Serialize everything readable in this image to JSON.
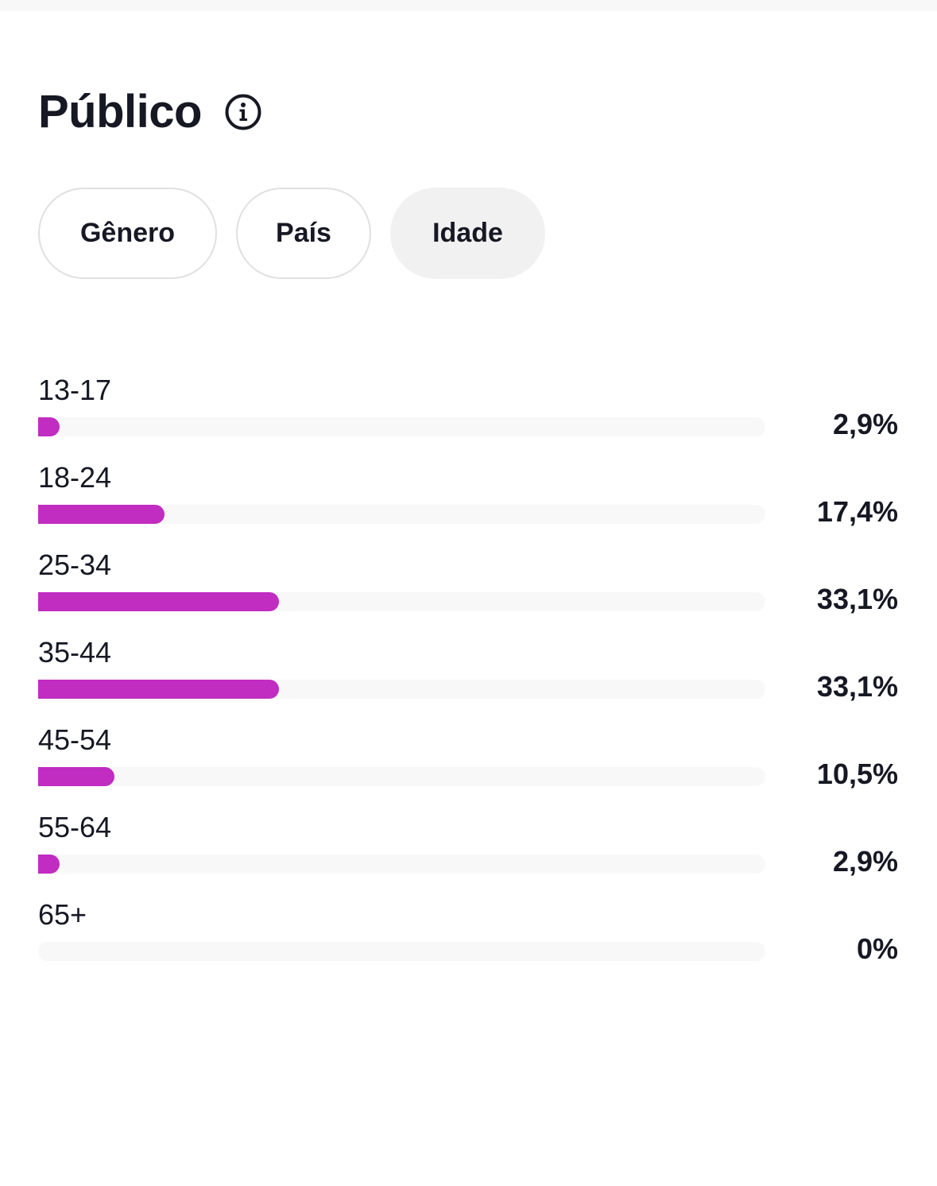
{
  "header": {
    "title": "Público",
    "info_icon": "info-circle-icon"
  },
  "tabs": [
    {
      "label": "Gênero",
      "active": false
    },
    {
      "label": "País",
      "active": false
    },
    {
      "label": "Idade",
      "active": true
    }
  ],
  "colors": {
    "bar_fill": "#c12cc1",
    "bar_track": "#f8f8f8",
    "active_tab_bg": "#f1f1f2"
  },
  "chart_data": {
    "type": "bar",
    "categories": [
      "13-17",
      "18-24",
      "25-34",
      "35-44",
      "45-54",
      "55-64",
      "65+"
    ],
    "value_labels": [
      "2,9%",
      "17,4%",
      "33,1%",
      "33,1%",
      "10,5%",
      "2,9%",
      "0%"
    ],
    "values": [
      2.9,
      17.4,
      33.1,
      33.1,
      10.5,
      2.9,
      0
    ],
    "unit": "%"
  }
}
